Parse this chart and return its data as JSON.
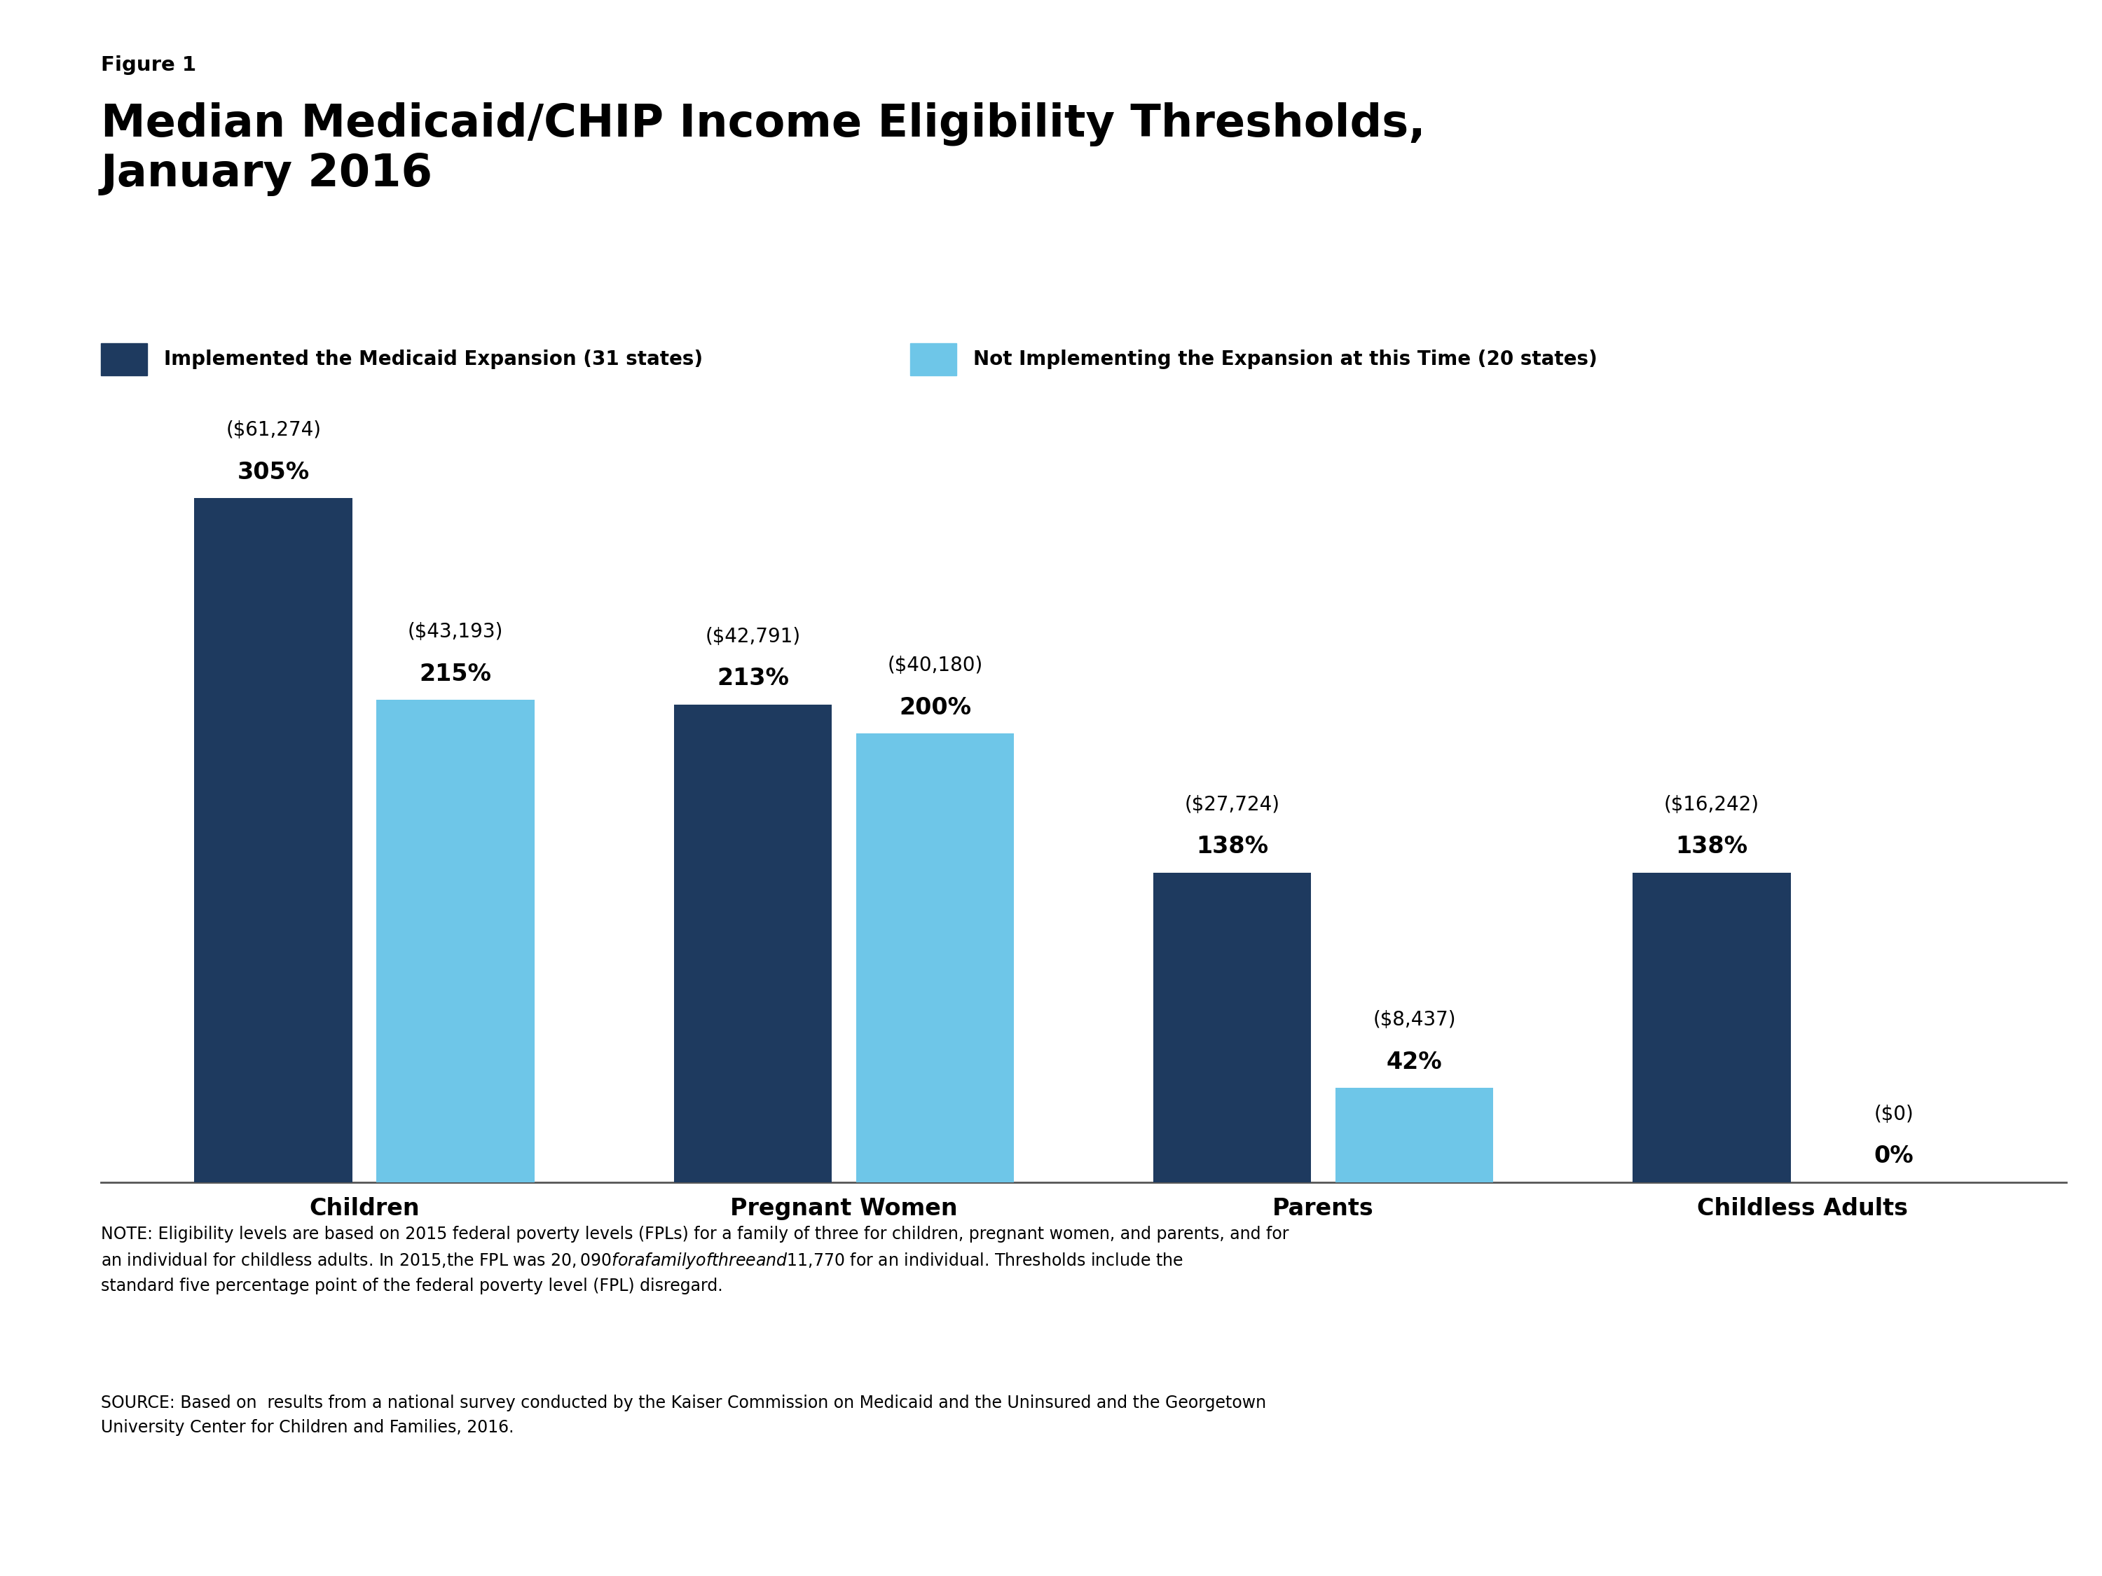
{
  "figure_label": "Figure 1",
  "title": "Median Medicaid/CHIP Income Eligibility Thresholds,\nJanuary 2016",
  "categories": [
    "Children",
    "Pregnant Women",
    "Parents",
    "Childless Adults"
  ],
  "dark_values": [
    305,
    213,
    138,
    138
  ],
  "light_values": [
    215,
    200,
    42,
    0
  ],
  "dark_labels_pct": [
    "305%",
    "213%",
    "138%",
    "138%"
  ],
  "dark_labels_dollar": [
    "($61,274)",
    "($42,791)",
    "($27,724)",
    "($16,242)"
  ],
  "light_labels_pct": [
    "215%",
    "200%",
    "42%",
    "0%"
  ],
  "light_labels_dollar": [
    "($43,193)",
    "($40,180)",
    "($8,437)",
    "($0)"
  ],
  "dark_color": "#1e3a5f",
  "light_color": "#6ec6e8",
  "legend_dark_label": "Implemented the Medicaid Expansion (31 states)",
  "legend_light_label": "Not Implementing the Expansion at this Time (20 states)",
  "note_text": "NOTE: Eligibility levels are based on 2015 federal poverty levels (FPLs) for a family of three for children, pregnant women, and parents, and for\nan individual for childless adults. In 2015,the FPL was $20,090 for a family of three and $11,770 for an individual. Thresholds include the\nstandard five percentage point of the federal poverty level (FPL) disregard.",
  "source_text": "SOURCE: Based on  results from a national survey conducted by the Kaiser Commission on Medicaid and the Uninsured and the Georgetown\nUniversity Center for Children and Families, 2016.",
  "background_color": "#ffffff",
  "ylim": [
    0,
    355
  ],
  "kaiser_box_color": "#1e3a5f"
}
